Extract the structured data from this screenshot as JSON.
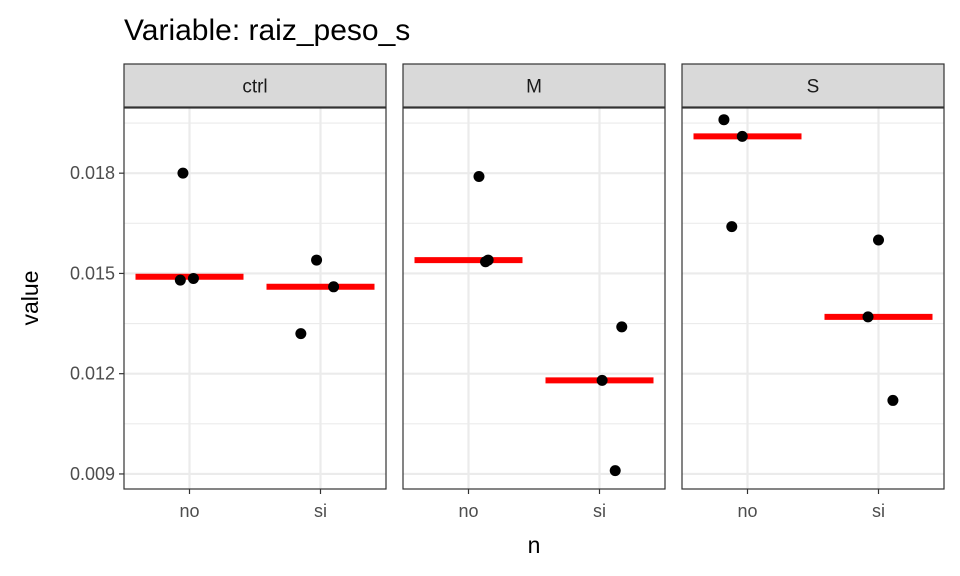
{
  "chart_data": {
    "type": "scatter",
    "title": "Variable: raiz_peso_s",
    "xlabel": "n",
    "ylabel": "value",
    "x_categories": [
      "no",
      "si"
    ],
    "ylim": [
      0.00855,
      0.01995
    ],
    "y_ticks": [
      0.009,
      0.012,
      0.015,
      0.018
    ],
    "y_tick_labels": [
      "0.009",
      "0.012",
      "0.015",
      "0.018"
    ],
    "grid": true,
    "legend": "none",
    "colors": {
      "points": "#000000",
      "mean_bar": "#ff0000",
      "strip_fill": "#d9d9d9",
      "grid": "#ebebeb"
    },
    "facets": [
      {
        "label": "ctrl",
        "points": [
          {
            "x": "no",
            "offset": -0.05,
            "y": 0.018
          },
          {
            "x": "no",
            "offset": -0.07,
            "y": 0.0148
          },
          {
            "x": "no",
            "offset": 0.03,
            "y": 0.01485
          },
          {
            "x": "si",
            "offset": -0.03,
            "y": 0.0154
          },
          {
            "x": "si",
            "offset": 0.1,
            "y": 0.0146
          },
          {
            "x": "si",
            "offset": -0.15,
            "y": 0.0132
          }
        ],
        "means": [
          {
            "x": "no",
            "y": 0.0149
          },
          {
            "x": "si",
            "y": 0.0146
          }
        ]
      },
      {
        "label": "M",
        "points": [
          {
            "x": "no",
            "offset": 0.08,
            "y": 0.0179
          },
          {
            "x": "no",
            "offset": 0.15,
            "y": 0.0154
          },
          {
            "x": "no",
            "offset": 0.13,
            "y": 0.01535
          },
          {
            "x": "si",
            "offset": 0.17,
            "y": 0.0134
          },
          {
            "x": "si",
            "offset": 0.02,
            "y": 0.0118
          },
          {
            "x": "si",
            "offset": 0.12,
            "y": 0.0091
          }
        ],
        "means": [
          {
            "x": "no",
            "y": 0.0154
          },
          {
            "x": "si",
            "y": 0.0118
          }
        ]
      },
      {
        "label": "S",
        "points": [
          {
            "x": "no",
            "offset": -0.18,
            "y": 0.0196
          },
          {
            "x": "no",
            "offset": -0.04,
            "y": 0.0191
          },
          {
            "x": "no",
            "offset": -0.12,
            "y": 0.0164
          },
          {
            "x": "si",
            "offset": 0.0,
            "y": 0.016
          },
          {
            "x": "si",
            "offset": -0.08,
            "y": 0.0137
          },
          {
            "x": "si",
            "offset": 0.11,
            "y": 0.0112
          }
        ],
        "means": [
          {
            "x": "no",
            "y": 0.0191
          },
          {
            "x": "si",
            "y": 0.0137
          }
        ]
      }
    ]
  }
}
